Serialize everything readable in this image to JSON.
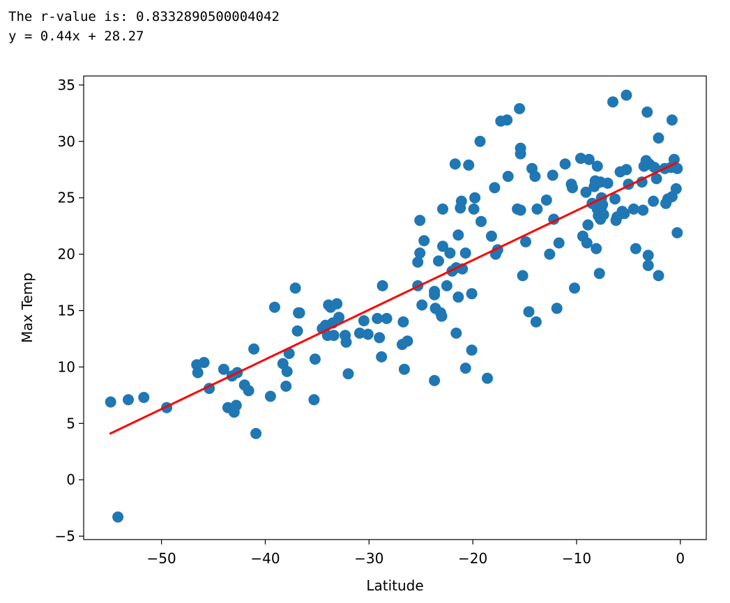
{
  "output": {
    "r_value_line": "The r-value is: 0.8332890500004042",
    "equation_line": "y = 0.44x + 28.27"
  },
  "colors": {
    "points": "#1f77b4",
    "regression": "#ff0000",
    "axes": "#000000"
  },
  "chart_data": {
    "type": "scatter",
    "title": "",
    "xlabel": "Latitude",
    "ylabel": "Max Temp",
    "xlim": [
      -57.5,
      2.5
    ],
    "ylim": [
      -5.3,
      35.8
    ],
    "xticks": [
      -50,
      -40,
      -30,
      -20,
      -10,
      0
    ],
    "yticks": [
      -5,
      0,
      5,
      10,
      15,
      20,
      25,
      30,
      35
    ],
    "xtick_labels": [
      "−50",
      "−40",
      "−30",
      "−20",
      "−10",
      "0"
    ],
    "ytick_labels": [
      "−5",
      "0",
      "5",
      "10",
      "15",
      "20",
      "25",
      "30",
      "35"
    ],
    "grid": false,
    "regression": {
      "slope": 0.44,
      "intercept": 28.27,
      "x_range": [
        -55,
        -0.3
      ],
      "color": "#ff0000"
    },
    "points": [
      [
        -54.9,
        6.9
      ],
      [
        -54.2,
        -3.3
      ],
      [
        -53.2,
        7.1
      ],
      [
        -51.7,
        7.3
      ],
      [
        -49.5,
        6.4
      ],
      [
        -46.6,
        10.2
      ],
      [
        -46.5,
        9.5
      ],
      [
        -45.9,
        10.4
      ],
      [
        -45.4,
        8.1
      ],
      [
        -44,
        9.8
      ],
      [
        -43.6,
        6.4
      ],
      [
        -43.2,
        9.2
      ],
      [
        -43.0,
        6.0
      ],
      [
        -42.8,
        6.6
      ],
      [
        -42.7,
        9.5
      ],
      [
        -42.0,
        8.4
      ],
      [
        -41.6,
        7.9
      ],
      [
        -41.1,
        11.6
      ],
      [
        -40.9,
        4.1
      ],
      [
        -39.5,
        7.4
      ],
      [
        -39.1,
        15.3
      ],
      [
        -38.3,
        10.3
      ],
      [
        -38.0,
        8.3
      ],
      [
        -37.9,
        9.6
      ],
      [
        -37.7,
        11.2
      ],
      [
        -37.1,
        17.0
      ],
      [
        -36.9,
        13.2
      ],
      [
        -36.8,
        14.8
      ],
      [
        -36.7,
        14.8
      ],
      [
        -35.3,
        7.1
      ],
      [
        -35.2,
        10.7
      ],
      [
        -34.5,
        13.4
      ],
      [
        -34.2,
        13.7
      ],
      [
        -34.0,
        12.8
      ],
      [
        -33.9,
        15.5
      ],
      [
        -33.7,
        15.3
      ],
      [
        -33.5,
        13.9
      ],
      [
        -33.4,
        12.8
      ],
      [
        -33.1,
        15.6
      ],
      [
        -32.9,
        14.4
      ],
      [
        -32.3,
        12.8
      ],
      [
        -32.2,
        12.2
      ],
      [
        -32.0,
        9.4
      ],
      [
        -30.9,
        13.0
      ],
      [
        -30.5,
        14.1
      ],
      [
        -30.1,
        12.9
      ],
      [
        -29.2,
        14.3
      ],
      [
        -29.0,
        12.6
      ],
      [
        -28.8,
        10.9
      ],
      [
        -28.7,
        17.2
      ],
      [
        -28.3,
        14.3
      ],
      [
        -26.8,
        12.0
      ],
      [
        -26.7,
        14.0
      ],
      [
        -26.6,
        9.8
      ],
      [
        -26.3,
        12.3
      ],
      [
        -25.3,
        19.3
      ],
      [
        -25.3,
        17.2
      ],
      [
        -25.1,
        20.1
      ],
      [
        -25.1,
        23.0
      ],
      [
        -24.9,
        15.5
      ],
      [
        -24.7,
        21.2
      ],
      [
        -23.7,
        8.8
      ],
      [
        -23.7,
        16.4
      ],
      [
        -23.7,
        16.7
      ],
      [
        -23.6,
        15.2
      ],
      [
        -23.3,
        19.4
      ],
      [
        -23.1,
        14.8
      ],
      [
        -23.0,
        14.5
      ],
      [
        -22.9,
        24.0
      ],
      [
        -22.9,
        20.7
      ],
      [
        -22.5,
        17.2
      ],
      [
        -22.2,
        20.1
      ],
      [
        -22.0,
        18.5
      ],
      [
        -21.7,
        28.0
      ],
      [
        -21.6,
        18.8
      ],
      [
        -21.6,
        13.0
      ],
      [
        -21.4,
        16.2
      ],
      [
        -21.4,
        21.7
      ],
      [
        -21.2,
        24.1
      ],
      [
        -21.1,
        24.7
      ],
      [
        -21.0,
        18.7
      ],
      [
        -20.7,
        9.9
      ],
      [
        -20.7,
        20.1
      ],
      [
        -20.4,
        27.9
      ],
      [
        -20.1,
        16.5
      ],
      [
        -20.1,
        11.5
      ],
      [
        -19.9,
        24.0
      ],
      [
        -19.8,
        25.0
      ],
      [
        -19.3,
        30.0
      ],
      [
        -19.2,
        22.9
      ],
      [
        -18.6,
        9.0
      ],
      [
        -18.2,
        21.6
      ],
      [
        -17.9,
        25.9
      ],
      [
        -17.8,
        20.0
      ],
      [
        -17.6,
        20.4
      ],
      [
        -17.3,
        31.8
      ],
      [
        -16.7,
        31.9
      ],
      [
        -16.6,
        26.9
      ],
      [
        -15.7,
        24.0
      ],
      [
        -15.5,
        32.9
      ],
      [
        -15.4,
        29.4
      ],
      [
        -15.4,
        28.9
      ],
      [
        -15.4,
        23.9
      ],
      [
        -15.2,
        18.1
      ],
      [
        -14.9,
        21.1
      ],
      [
        -14.6,
        14.9
      ],
      [
        -14.3,
        27.6
      ],
      [
        -14.0,
        26.9
      ],
      [
        -13.9,
        14.0
      ],
      [
        -13.8,
        24.0
      ],
      [
        -12.9,
        24.8
      ],
      [
        -12.6,
        20.0
      ],
      [
        -12.3,
        27.0
      ],
      [
        -12.2,
        23.1
      ],
      [
        -11.9,
        15.2
      ],
      [
        -11.7,
        21.0
      ],
      [
        -11.1,
        28.0
      ],
      [
        -10.5,
        26.2
      ],
      [
        -10.4,
        25.9
      ],
      [
        -10.2,
        17.0
      ],
      [
        -9.6,
        28.5
      ],
      [
        -9.4,
        21.6
      ],
      [
        -9.1,
        25.5
      ],
      [
        -9.0,
        21.0
      ],
      [
        -8.9,
        22.6
      ],
      [
        -8.8,
        28.4
      ],
      [
        -8.5,
        24.5
      ],
      [
        -8.3,
        26.0
      ],
      [
        -8.2,
        26.5
      ],
      [
        -8.1,
        20.5
      ],
      [
        -8.0,
        27.8
      ],
      [
        -8.0,
        24.0
      ],
      [
        -7.9,
        23.4
      ],
      [
        -7.8,
        18.3
      ],
      [
        -7.7,
        26.4
      ],
      [
        -7.7,
        23.1
      ],
      [
        -7.6,
        24.2
      ],
      [
        -7.6,
        25.0
      ],
      [
        -7.5,
        24.4
      ],
      [
        -7.4,
        23.5
      ],
      [
        -7.0,
        26.3
      ],
      [
        -6.5,
        33.5
      ],
      [
        -6.3,
        24.9
      ],
      [
        -6.2,
        23.0
      ],
      [
        -6.1,
        23.3
      ],
      [
        -5.8,
        27.3
      ],
      [
        -5.6,
        23.8
      ],
      [
        -5.4,
        23.6
      ],
      [
        -5.2,
        27.5
      ],
      [
        -5.2,
        34.1
      ],
      [
        -5.0,
        26.2
      ],
      [
        -4.5,
        24.0
      ],
      [
        -4.3,
        20.5
      ],
      [
        -3.7,
        26.4
      ],
      [
        -3.6,
        23.9
      ],
      [
        -3.5,
        27.8
      ],
      [
        -3.3,
        28.3
      ],
      [
        -3.2,
        32.6
      ],
      [
        -3.1,
        19.9
      ],
      [
        -3.1,
        19.0
      ],
      [
        -3.0,
        28.0
      ],
      [
        -2.6,
        24.7
      ],
      [
        -2.5,
        27.7
      ],
      [
        -2.3,
        26.7
      ],
      [
        -2.1,
        30.3
      ],
      [
        -2.1,
        18.1
      ],
      [
        -1.5,
        27.6
      ],
      [
        -1.4,
        24.5
      ],
      [
        -1.2,
        24.9
      ],
      [
        -0.9,
        27.7
      ],
      [
        -0.8,
        25.1
      ],
      [
        -0.8,
        31.9
      ],
      [
        -0.6,
        28.4
      ],
      [
        -0.4,
        25.8
      ],
      [
        -0.3,
        27.6
      ],
      [
        -0.3,
        21.9
      ]
    ]
  }
}
